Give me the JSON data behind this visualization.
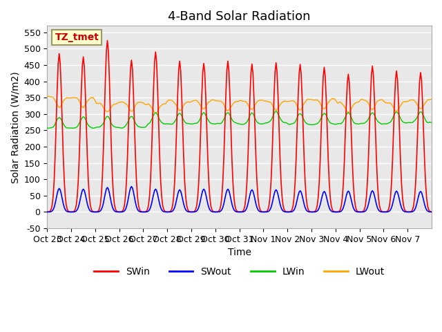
{
  "title": "4-Band Solar Radiation",
  "xlabel": "Time",
  "ylabel": "Solar Radiation (W/m2)",
  "ylim": [
    -50,
    570
  ],
  "colors": {
    "SWin": "#FF0000",
    "SWout": "#0000FF",
    "LWin": "#00CC00",
    "LWout": "#FFA500"
  },
  "xtick_labels": [
    "Oct 23",
    "Oct 24",
    "Oct 25",
    "Oct 26",
    "Oct 27",
    "Oct 28",
    "Oct 29",
    "Oct 30",
    "Oct 31",
    "Nov 1",
    "Nov 2",
    "Nov 3",
    "Nov 4",
    "Nov 5",
    "Nov 6",
    "Nov 7"
  ],
  "ytick_values": [
    -50,
    0,
    50,
    100,
    150,
    200,
    250,
    300,
    350,
    400,
    450,
    500,
    550
  ],
  "annotation_text": "TZ_tmet",
  "annotation_color": "#CC0000",
  "annotation_bg": "#FFFFCC",
  "background_color": "#E8E8E8",
  "title_fontsize": 13,
  "axis_fontsize": 10,
  "tick_fontsize": 9,
  "swin_peaks": [
    485,
    475,
    525,
    465,
    490,
    462,
    455,
    462,
    453,
    457,
    452,
    443,
    422,
    447,
    432,
    427
  ],
  "swout_peaks": [
    72,
    70,
    75,
    78,
    70,
    68,
    70,
    70,
    68,
    68,
    65,
    63,
    64,
    65,
    64,
    63
  ]
}
